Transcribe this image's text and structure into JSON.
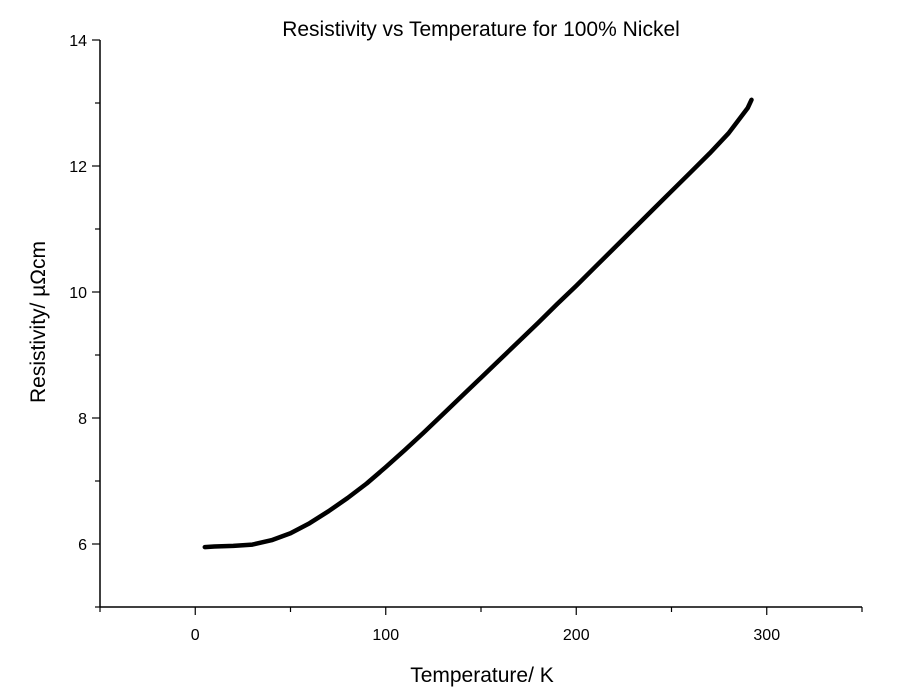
{
  "chart_data": {
    "type": "line",
    "title": "Resistivity vs Temperature for 100% Nickel",
    "xlabel": "Temperature/ K",
    "ylabel": "Resistivity/ µΩcm",
    "xlim": [
      -50,
      350
    ],
    "ylim": [
      5,
      14
    ],
    "x_major_ticks": [
      0,
      100,
      200,
      300
    ],
    "x_minor_ticks": [
      -50,
      50,
      150,
      250,
      350
    ],
    "y_major_ticks": [
      6,
      8,
      10,
      12,
      14
    ],
    "y_minor_ticks": [
      5,
      7,
      9,
      11,
      13
    ],
    "x_tick_labels": [
      "0",
      "100",
      "200",
      "300"
    ],
    "y_tick_labels": [
      "6",
      "8",
      "10",
      "12",
      "14"
    ],
    "grid": false,
    "line_color": "#000000",
    "series": [
      {
        "x": [
          5,
          10,
          20,
          30,
          40,
          50,
          60,
          70,
          80,
          90,
          100,
          110,
          120,
          130,
          140,
          150,
          160,
          170,
          180,
          190,
          200,
          210,
          220,
          230,
          240,
          250,
          260,
          270,
          280,
          290,
          292
        ],
        "y": [
          5.95,
          5.96,
          5.97,
          5.99,
          6.06,
          6.17,
          6.33,
          6.52,
          6.73,
          6.96,
          7.22,
          7.49,
          7.77,
          8.06,
          8.35,
          8.64,
          8.93,
          9.22,
          9.51,
          9.81,
          10.1,
          10.4,
          10.7,
          11.0,
          11.3,
          11.6,
          11.9,
          12.2,
          12.52,
          12.92,
          13.05
        ]
      }
    ]
  }
}
